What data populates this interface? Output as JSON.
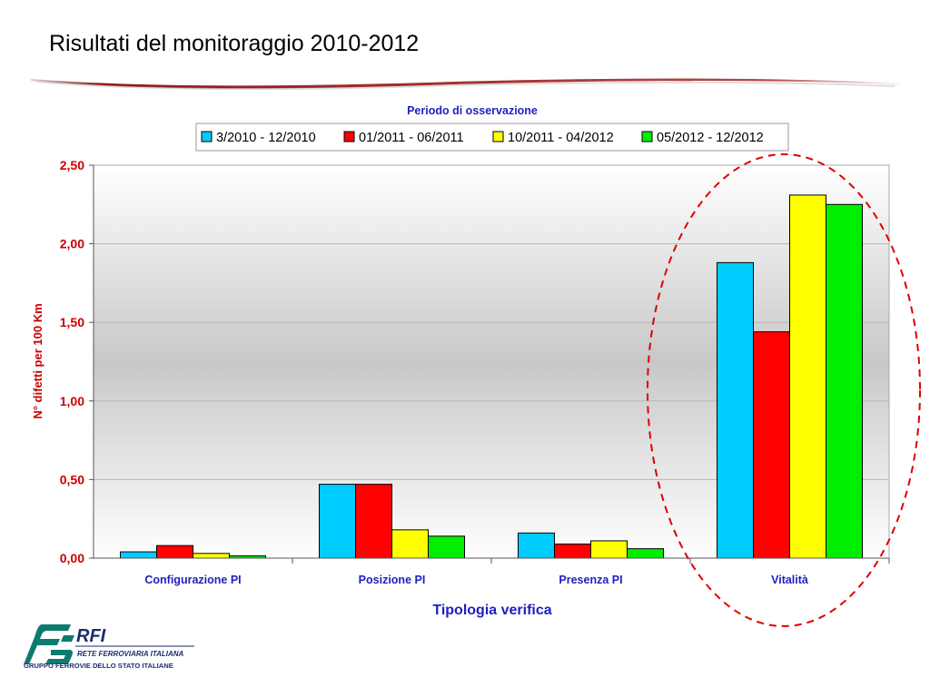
{
  "slide": {
    "title": "Risultati del monitoraggio 2010-2012"
  },
  "logo": {
    "brand": "RFI",
    "name": "RETE FERROVIARIA ITALIANA",
    "group": "GRUPPO FERROVIE DELLO STATO ITALIANE"
  },
  "colors": {
    "accent": "#9b1c1c",
    "axis_label": "#cc0000",
    "chart_text": "#1f1fbf",
    "highlight_ellipse": "#dd0000"
  },
  "chart_data": {
    "type": "bar",
    "legend_title": "Periodo di osservazione",
    "legend_position": "top",
    "xlabel": "Tipologia verifica",
    "ylabel": "N° difetti per 100 Km",
    "ylim": [
      0,
      2.5
    ],
    "yticks": [
      "0,00",
      "0,50",
      "1,00",
      "1,50",
      "2,00",
      "2,50"
    ],
    "grid": true,
    "categories": [
      "Configurazione PI",
      "Posizione PI",
      "Presenza PI",
      "Vitalità"
    ],
    "series": [
      {
        "name": "3/2010 - 12/2010",
        "color": "#00ccff",
        "values": [
          0.04,
          0.47,
          0.16,
          1.88
        ]
      },
      {
        "name": "01/2011 - 06/2011",
        "color": "#ff0000",
        "values": [
          0.08,
          0.47,
          0.09,
          1.44
        ]
      },
      {
        "name": "10/2011 - 04/2012",
        "color": "#ffff00",
        "values": [
          0.03,
          0.18,
          0.11,
          2.31
        ]
      },
      {
        "name": "05/2012 - 12/2012",
        "color": "#00ee00",
        "values": [
          0.015,
          0.14,
          0.06,
          2.25
        ]
      }
    ],
    "annotation": "dashed ellipse highlighting Vitalità"
  }
}
